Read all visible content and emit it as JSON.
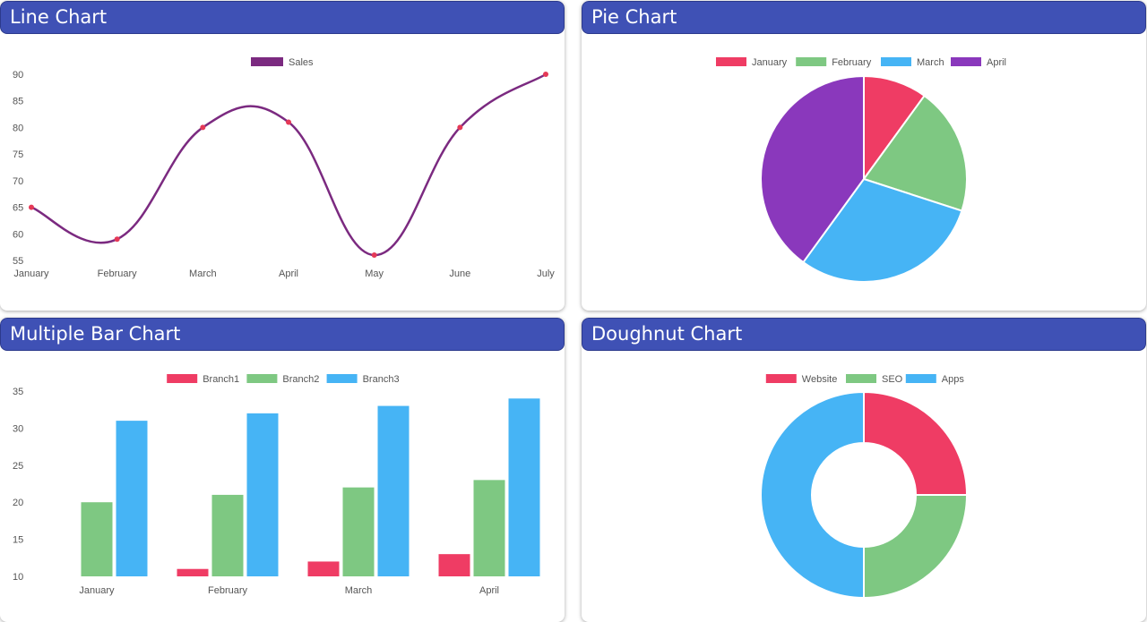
{
  "cards": {
    "line": {
      "title": "Line Chart"
    },
    "pie": {
      "title": "Pie Chart"
    },
    "bar": {
      "title": "Multiple Bar Chart"
    },
    "doughnut": {
      "title": "Doughnut Chart"
    }
  },
  "colors": {
    "header": "#3f51b5",
    "line": "#7b2a80",
    "point": "#e53957",
    "red": "#ef3c64",
    "green": "#7ec882",
    "blue": "#46b4f5",
    "purple": "#8a38bc"
  },
  "chart_data": [
    {
      "id": "line",
      "type": "line",
      "categories": [
        "January",
        "February",
        "March",
        "April",
        "May",
        "June",
        "July"
      ],
      "series": [
        {
          "name": "Sales",
          "values": [
            65,
            59,
            80,
            81,
            56,
            80,
            90
          ]
        }
      ],
      "yticks": [
        90,
        85,
        80,
        75,
        70,
        65,
        60,
        55
      ],
      "ylim": [
        55,
        90
      ],
      "legend": "top-center"
    },
    {
      "id": "pie",
      "type": "pie",
      "labels": [
        "January",
        "February",
        "March",
        "April"
      ],
      "values": [
        10,
        20,
        30,
        40
      ],
      "legend": "top-center"
    },
    {
      "id": "bar",
      "type": "bar",
      "categories": [
        "January",
        "February",
        "March",
        "April"
      ],
      "series": [
        {
          "name": "Branch1",
          "values": [
            10,
            11,
            12,
            13
          ]
        },
        {
          "name": "Branch2",
          "values": [
            20,
            21,
            22,
            23
          ]
        },
        {
          "name": "Branch3",
          "values": [
            31,
            32,
            33,
            34
          ]
        }
      ],
      "yticks": [
        35,
        30,
        25,
        20,
        15,
        10
      ],
      "ylim": [
        10,
        35
      ],
      "legend": "top-center"
    },
    {
      "id": "doughnut",
      "type": "pie",
      "labels": [
        "Website",
        "SEO",
        "Apps"
      ],
      "values": [
        25,
        25,
        50
      ],
      "legend": "top-center"
    }
  ]
}
